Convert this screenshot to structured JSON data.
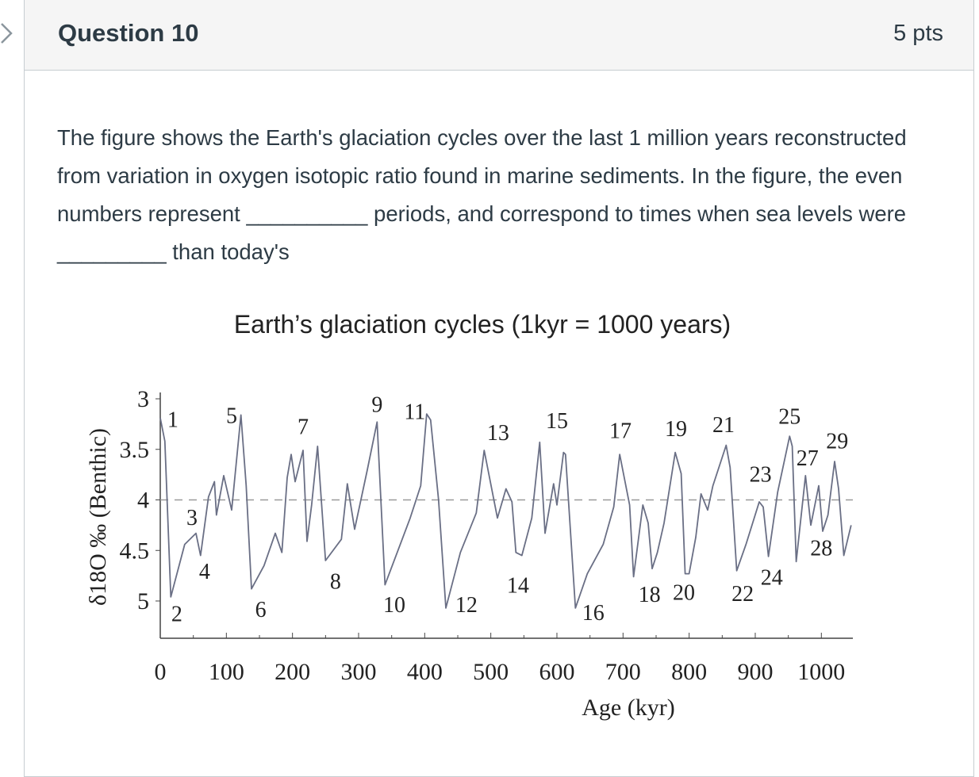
{
  "question": {
    "title": "Question 10",
    "points": "5 pts",
    "text": "The figure shows the Earth's glaciation cycles over the last 1 million years reconstructed from variation in oxygen isotopic ratio found in marine sediments.  In the figure, the even numbers represent __________ periods, and correspond to times when sea levels were _________ than today's"
  },
  "icons": {
    "collapse": "chevron-right-icon"
  },
  "chart_data": {
    "type": "line",
    "title": "Earth’s glaciation cycles (1kyr = 1000 years)",
    "xlabel": "Age (kyr)",
    "ylabel": "δ18O ‰ (Benthic)",
    "xlim": [
      0,
      1050
    ],
    "ylim": [
      5.3,
      3
    ],
    "y_inverted": true,
    "x_ticks": [
      "0",
      "100",
      "200",
      "300",
      "400",
      "500",
      "600",
      "700",
      "800",
      "900",
      "1000"
    ],
    "y_ticks": [
      "3",
      "3.5",
      "4",
      "4.5",
      "5"
    ],
    "reference_line": {
      "y": 4,
      "style": "dashed"
    },
    "line_color": "#6a6f85",
    "grid": false,
    "series": [
      {
        "x": [
          0,
          7,
          16,
          37,
          54,
          61,
          73,
          82,
          85,
          96,
          108,
          122,
          130,
          138,
          157,
          174,
          184,
          192,
          198,
          204,
          216,
          222,
          229,
          238,
          250,
          274,
          283,
          294,
          313,
          328,
          340,
          378,
          394,
          403,
          409,
          421,
          432,
          454,
          478,
          490,
          510,
          523,
          532,
          538,
          547,
          562,
          574,
          582,
          595,
          600,
          610,
          613,
          628,
          646,
          670,
          686,
          695,
          710,
          716,
          730,
          738,
          744,
          752,
          762,
          779,
          788,
          794,
          800,
          810,
          818,
          828,
          836,
          856,
          862,
          872,
          886,
          906,
          912,
          920,
          934,
          952,
          956,
          962,
          976,
          984,
          996,
          1002,
          1010,
          1020,
          1026,
          1034,
          1045
        ],
        "y": [
          3.19,
          3.42,
          4.96,
          4.44,
          4.33,
          4.55,
          3.97,
          3.82,
          4.15,
          3.76,
          4.1,
          3.16,
          3.86,
          4.88,
          4.65,
          4.33,
          4.52,
          3.78,
          3.55,
          3.82,
          3.51,
          4.41,
          4.05,
          3.47,
          4.6,
          4.39,
          3.84,
          4.29,
          3.71,
          3.23,
          4.84,
          4.18,
          3.86,
          3.15,
          3.21,
          4.0,
          5.07,
          4.52,
          4.13,
          3.51,
          4.18,
          3.89,
          4.02,
          4.52,
          4.55,
          4.18,
          3.43,
          4.33,
          3.84,
          4.05,
          3.53,
          3.55,
          5.07,
          4.73,
          4.44,
          4.07,
          3.55,
          4.05,
          4.76,
          4.05,
          4.23,
          4.68,
          4.52,
          4.23,
          3.53,
          3.74,
          4.73,
          4.73,
          4.37,
          3.94,
          4.1,
          3.86,
          3.46,
          3.68,
          4.7,
          4.44,
          4.02,
          4.07,
          4.56,
          3.92,
          3.37,
          3.47,
          4.61,
          3.76,
          4.25,
          3.86,
          4.31,
          4.15,
          3.62,
          3.89,
          4.55,
          4.25
        ]
      }
    ],
    "annotations": [
      {
        "text": "1",
        "x": 19,
        "y": 3.2
      },
      {
        "text": "2",
        "x": 25,
        "y": 5.12
      },
      {
        "text": "3",
        "x": 48,
        "y": 4.17
      },
      {
        "text": "4",
        "x": 67,
        "y": 4.7
      },
      {
        "text": "5",
        "x": 108,
        "y": 3.16
      },
      {
        "text": "6",
        "x": 152,
        "y": 5.08
      },
      {
        "text": "7",
        "x": 216,
        "y": 3.27
      },
      {
        "text": "8",
        "x": 265,
        "y": 4.8
      },
      {
        "text": "9",
        "x": 328,
        "y": 3.05
      },
      {
        "text": "10",
        "x": 354,
        "y": 5.03
      },
      {
        "text": "11",
        "x": 385,
        "y": 3.12
      },
      {
        "text": "12",
        "x": 463,
        "y": 5.03
      },
      {
        "text": "13",
        "x": 511,
        "y": 3.33
      },
      {
        "text": "14",
        "x": 541,
        "y": 4.84
      },
      {
        "text": "15",
        "x": 600,
        "y": 3.21
      },
      {
        "text": "16",
        "x": 655,
        "y": 5.11
      },
      {
        "text": "17",
        "x": 696,
        "y": 3.31
      },
      {
        "text": "18",
        "x": 740,
        "y": 4.93
      },
      {
        "text": "19",
        "x": 780,
        "y": 3.29
      },
      {
        "text": "20",
        "x": 792,
        "y": 4.91
      },
      {
        "text": "21",
        "x": 852,
        "y": 3.25
      },
      {
        "text": "22",
        "x": 881,
        "y": 4.92
      },
      {
        "text": "23",
        "x": 908,
        "y": 3.74
      },
      {
        "text": "24",
        "x": 925,
        "y": 4.76
      },
      {
        "text": "25",
        "x": 952,
        "y": 3.17
      },
      {
        "text": "27",
        "x": 979,
        "y": 3.58
      },
      {
        "text": "28",
        "x": 1000,
        "y": 4.47
      },
      {
        "text": "29",
        "x": 1024,
        "y": 3.41
      }
    ]
  }
}
